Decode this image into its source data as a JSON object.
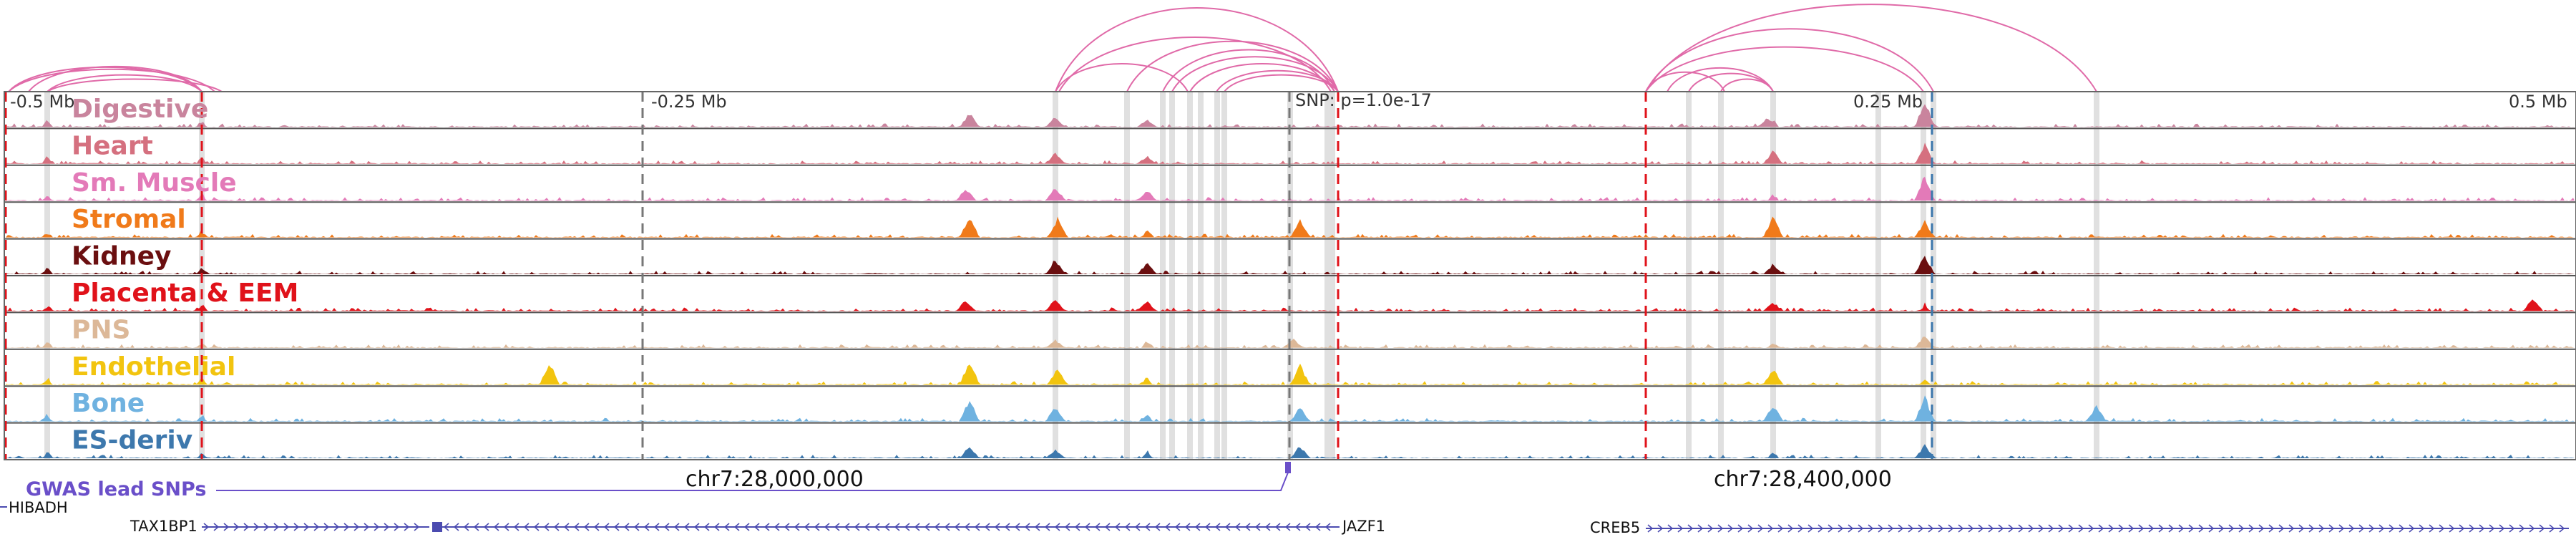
{
  "axis": {
    "ticks": [
      {
        "label": "-0.5 Mb",
        "pos": -0.5
      },
      {
        "label": "-0.25 Mb",
        "pos": -0.25
      },
      {
        "label": "0.25 Mb",
        "pos": 0.25
      },
      {
        "label": "0.5 Mb",
        "pos": 0.5
      }
    ],
    "snp_label": "SNP: p=1.0e-17",
    "range_mb": [
      -0.5,
      0.5
    ],
    "snp_pos_mb": 0.0
  },
  "tracks": [
    {
      "label": "Digestive",
      "color": "#c9849d"
    },
    {
      "label": "Heart",
      "color": "#d5707f"
    },
    {
      "label": "Sm. Muscle",
      "color": "#e37ab8"
    },
    {
      "label": "Stromal",
      "color": "#f07a1a"
    },
    {
      "label": "Kidney",
      "color": "#6b0f10"
    },
    {
      "label": "Placenta & EEM",
      "color": "#e0121a"
    },
    {
      "label": "PNS",
      "color": "#dcb898"
    },
    {
      "label": "Endothelial",
      "color": "#f2c40f"
    },
    {
      "label": "Bone",
      "color": "#6fb2e0"
    },
    {
      "label": "ES-deriv",
      "color": "#3d78ad"
    }
  ],
  "gwas": {
    "label": "GWAS lead SNPs",
    "color": "#6a4fc9"
  },
  "coordinates": [
    {
      "label": "chr7:28,000,000",
      "pos_mb": -0.25
    },
    {
      "label": "chr7:28,400,000",
      "pos_mb": 0.15
    }
  ],
  "genes": [
    {
      "name": "HIBADH",
      "start_mb": -0.55,
      "end_mb": -0.5
    },
    {
      "name": "TAX1BP1",
      "start_mb": -0.42,
      "end_mb": -0.33
    },
    {
      "name": "JAZF1",
      "start_mb": -0.33,
      "end_mb": 0.02
    },
    {
      "name": "CREB5",
      "start_mb": 0.14,
      "end_mb": 0.5
    }
  ],
  "colors": {
    "highlight": "#e0e0e0",
    "dashed_line": "#e0121a",
    "arc": "#e06aa8",
    "gene": "#4b4bb0"
  }
}
